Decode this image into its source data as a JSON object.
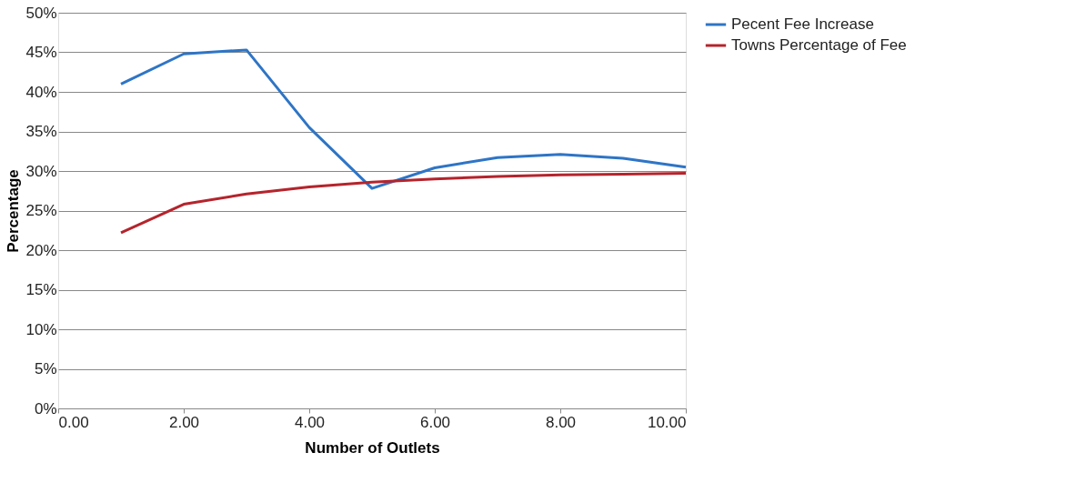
{
  "chart_data": {
    "type": "line",
    "xlabel": "Number of Outlets",
    "ylabel": "Percentage",
    "x": [
      1,
      2,
      3,
      4,
      5,
      6,
      7,
      8,
      9,
      10
    ],
    "series": [
      {
        "name": "Pecent Fee Increase",
        "color": "#2e75c6",
        "values": [
          41.0,
          44.8,
          45.3,
          35.5,
          27.8,
          30.4,
          31.7,
          32.1,
          31.6,
          30.5
        ]
      },
      {
        "name": "Towns Percentage of Fee",
        "color": "#b5242c",
        "values": [
          22.2,
          25.8,
          27.1,
          28.0,
          28.6,
          29.0,
          29.3,
          29.5,
          29.6,
          29.7
        ]
      }
    ],
    "xlim": [
      0,
      10
    ],
    "xticks": [
      {
        "value": 0,
        "label": "0.00"
      },
      {
        "value": 2,
        "label": "2.00"
      },
      {
        "value": 4,
        "label": "4.00"
      },
      {
        "value": 6,
        "label": "6.00"
      },
      {
        "value": 8,
        "label": "8.00"
      },
      {
        "value": 10,
        "label": "10.00"
      }
    ],
    "ylim": [
      0,
      50
    ],
    "yticks": [
      {
        "value": 0,
        "label": "0%"
      },
      {
        "value": 5,
        "label": "5%"
      },
      {
        "value": 10,
        "label": "10%"
      },
      {
        "value": 15,
        "label": "15%"
      },
      {
        "value": 20,
        "label": "20%"
      },
      {
        "value": 25,
        "label": "25%"
      },
      {
        "value": 30,
        "label": "30%"
      },
      {
        "value": 35,
        "label": "35%"
      },
      {
        "value": 40,
        "label": "40%"
      },
      {
        "value": 45,
        "label": "45%"
      },
      {
        "value": 50,
        "label": "50%"
      }
    ],
    "grid": "y",
    "legend": "right",
    "marker": "none",
    "line_style": "solid"
  }
}
